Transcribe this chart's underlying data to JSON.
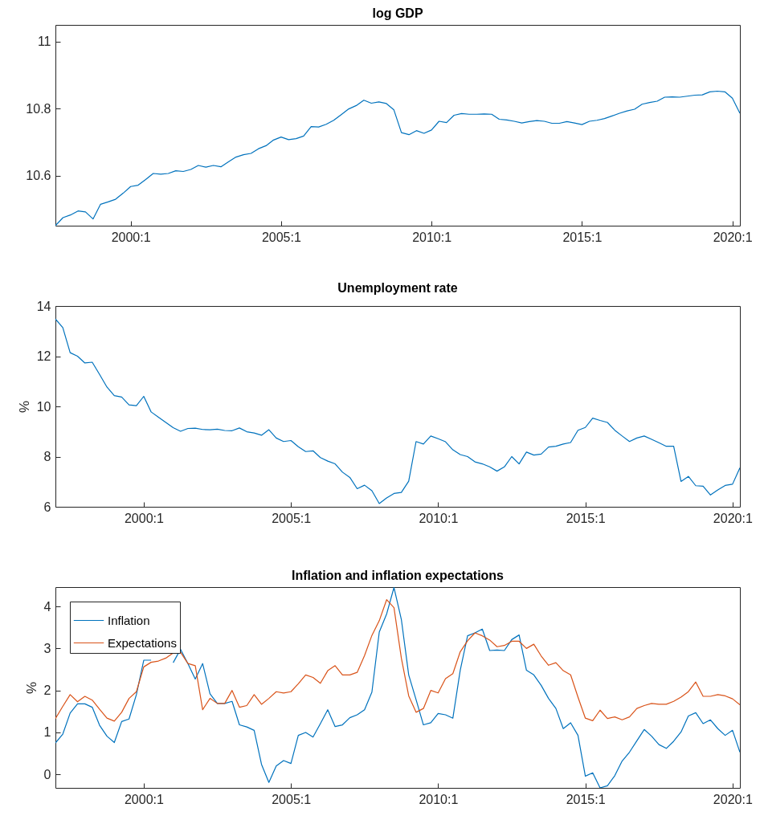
{
  "chart_data": [
    {
      "type": "line",
      "title": "log GDP",
      "ylim": [
        10.45,
        11.05
      ],
      "yticks": [
        10.6,
        10.8,
        11
      ],
      "categories": [
        null,
        null,
        null,
        null,
        null,
        null,
        null,
        null,
        null,
        null,
        "2000:1",
        null,
        null,
        null,
        null,
        null,
        null,
        null,
        null,
        null,
        null,
        null,
        null,
        null,
        null,
        null,
        null,
        null,
        null,
        null,
        "2005:1",
        null,
        null,
        null,
        null,
        null,
        null,
        null,
        null,
        null,
        null,
        null,
        null,
        null,
        null,
        null,
        null,
        null,
        null,
        null,
        "2010:1",
        null,
        null,
        null,
        null,
        null,
        null,
        null,
        null,
        null,
        null,
        null,
        null,
        null,
        null,
        null,
        null,
        null,
        null,
        null,
        "2015:1",
        null,
        null,
        null,
        null,
        null,
        null,
        null,
        null,
        null,
        null,
        null,
        null,
        null,
        null,
        null,
        null,
        null,
        null,
        null,
        "2020:1",
        null
      ],
      "series": [
        {
          "color": "#0072bd",
          "values": [
            10.45,
            10.474,
            10.482,
            10.494,
            10.491,
            10.47,
            10.514,
            10.521,
            10.529,
            10.547,
            10.567,
            10.571,
            10.588,
            10.606,
            10.604,
            10.606,
            10.614,
            10.612,
            10.618,
            10.63,
            10.625,
            10.63,
            10.626,
            10.641,
            10.655,
            10.662,
            10.666,
            10.68,
            10.689,
            10.706,
            10.715,
            10.707,
            10.71,
            10.718,
            10.746,
            10.745,
            10.753,
            10.765,
            10.782,
            10.799,
            10.809,
            10.825,
            10.816,
            10.82,
            10.815,
            10.796,
            10.728,
            10.722,
            10.734,
            10.726,
            10.736,
            10.762,
            10.758,
            10.78,
            10.785,
            10.783,
            10.783,
            10.784,
            10.783,
            10.768,
            10.766,
            10.762,
            10.757,
            10.761,
            10.764,
            10.762,
            10.756,
            10.756,
            10.761,
            10.757,
            10.752,
            10.762,
            10.765,
            10.77,
            10.778,
            10.786,
            10.793,
            10.798,
            10.813,
            10.818,
            10.822,
            10.834,
            10.835,
            10.834,
            10.837,
            10.84,
            10.841,
            10.85,
            10.852,
            10.85,
            10.831,
            10.786
          ]
        }
      ]
    },
    {
      "type": "line",
      "title": "Unemployment rate",
      "ylabel": "%",
      "ylim": [
        6,
        14
      ],
      "yticks": [
        6,
        8,
        10,
        12,
        14
      ],
      "categories": [
        null,
        null,
        null,
        null,
        null,
        null,
        null,
        null,
        null,
        null,
        null,
        null,
        "2000:1",
        null,
        null,
        null,
        null,
        null,
        null,
        null,
        null,
        null,
        null,
        null,
        null,
        null,
        null,
        null,
        null,
        null,
        null,
        null,
        "2005:1",
        null,
        null,
        null,
        null,
        null,
        null,
        null,
        null,
        null,
        null,
        null,
        null,
        null,
        null,
        null,
        null,
        null,
        null,
        null,
        "2010:1",
        null,
        null,
        null,
        null,
        null,
        null,
        null,
        null,
        null,
        null,
        null,
        null,
        null,
        null,
        null,
        null,
        null,
        null,
        null,
        "2015:1",
        null,
        null,
        null,
        null,
        null,
        null,
        null,
        null,
        null,
        null,
        null,
        null,
        null,
        null,
        null,
        null,
        null,
        null,
        null,
        "2020:1",
        null
      ],
      "series": [
        {
          "color": "#0072bd",
          "values": [
            13.48,
            13.14,
            12.14,
            12.0,
            11.73,
            11.76,
            11.27,
            10.77,
            10.43,
            10.37,
            10.06,
            10.03,
            10.4,
            9.78,
            9.57,
            9.36,
            9.15,
            9.01,
            9.12,
            9.13,
            9.08,
            9.07,
            9.09,
            9.04,
            9.03,
            9.14,
            8.99,
            8.94,
            8.85,
            9.07,
            8.74,
            8.6,
            8.64,
            8.39,
            8.2,
            8.23,
            7.96,
            7.82,
            7.71,
            7.38,
            7.17,
            6.72,
            6.86,
            6.64,
            6.13,
            6.35,
            6.53,
            6.57,
            7.02,
            8.6,
            8.5,
            8.82,
            8.71,
            8.59,
            8.27,
            8.08,
            8.0,
            7.79,
            7.71,
            7.59,
            7.42,
            7.59,
            8.0,
            7.71,
            8.18,
            8.06,
            8.1,
            8.38,
            8.41,
            8.5,
            8.56,
            9.05,
            9.16,
            9.53,
            9.44,
            9.36,
            9.05,
            8.82,
            8.6,
            8.74,
            8.82,
            8.69,
            8.55,
            8.41,
            8.41,
            7.01,
            7.21,
            6.84,
            6.82,
            6.47,
            6.67,
            6.85,
            6.9,
            7.55
          ]
        }
      ]
    },
    {
      "type": "line",
      "title": "Inflation and inflation expectations",
      "ylabel": "%",
      "legend": "top left",
      "ylim": [
        -0.32,
        4.46
      ],
      "yticks": [
        0,
        1,
        2,
        3,
        4
      ],
      "categories": [
        null,
        null,
        null,
        null,
        null,
        null,
        null,
        null,
        null,
        null,
        null,
        null,
        "2000:1",
        null,
        null,
        null,
        null,
        null,
        null,
        null,
        null,
        null,
        null,
        null,
        null,
        null,
        null,
        null,
        null,
        null,
        null,
        null,
        "2005:1",
        null,
        null,
        null,
        null,
        null,
        null,
        null,
        null,
        null,
        null,
        null,
        null,
        null,
        null,
        null,
        null,
        null,
        null,
        null,
        "2010:1",
        null,
        null,
        null,
        null,
        null,
        null,
        null,
        null,
        null,
        null,
        null,
        null,
        null,
        null,
        null,
        null,
        null,
        null,
        null,
        "2015:1",
        null,
        null,
        null,
        null,
        null,
        null,
        null,
        null,
        null,
        null,
        null,
        null,
        null,
        null,
        null,
        null,
        null,
        null,
        null,
        "2020:1",
        null
      ],
      "series": [
        {
          "name": "Inflation",
          "color": "#0072bd",
          "values": [
            0.75,
            0.96,
            1.46,
            1.68,
            1.68,
            1.6,
            1.17,
            0.91,
            0.76,
            1.26,
            1.32,
            1.9,
            2.72,
            2.72,
            null,
            null,
            2.66,
            2.98,
            2.64,
            2.27,
            2.64,
            1.92,
            1.69,
            1.69,
            1.74,
            1.18,
            1.13,
            1.05,
            0.24,
            -0.19,
            0.2,
            0.33,
            0.26,
            0.93,
            1.0,
            0.89,
            1.21,
            1.54,
            1.14,
            1.18,
            1.35,
            1.42,
            1.54,
            1.96,
            3.39,
            3.82,
            4.45,
            3.69,
            2.37,
            1.78,
            1.18,
            1.23,
            1.45,
            1.42,
            1.34,
            2.48,
            3.3,
            3.37,
            3.46,
            2.95,
            2.96,
            2.95,
            3.21,
            3.32,
            2.48,
            2.37,
            2.12,
            1.81,
            1.57,
            1.09,
            1.23,
            0.93,
            -0.04,
            0.04,
            -0.32,
            -0.27,
            -0.03,
            0.32,
            0.53,
            0.8,
            1.07,
            0.91,
            0.71,
            0.62,
            0.79,
            1.01,
            1.39,
            1.47,
            1.21,
            1.3,
            1.09,
            0.93,
            1.05,
            0.53
          ]
        },
        {
          "name": "Expectations",
          "color": "#d95319",
          "values": [
            1.33,
            1.62,
            1.9,
            1.73,
            1.86,
            1.77,
            1.55,
            1.34,
            1.27,
            1.48,
            1.81,
            1.97,
            2.56,
            2.67,
            2.7,
            2.77,
            2.89,
            2.91,
            2.64,
            2.59,
            1.54,
            1.81,
            1.69,
            1.69,
            2.0,
            1.6,
            1.64,
            1.9,
            1.67,
            1.81,
            1.97,
            1.94,
            1.97,
            2.16,
            2.37,
            2.31,
            2.17,
            2.47,
            2.59,
            2.37,
            2.37,
            2.43,
            2.83,
            3.31,
            3.66,
            4.16,
            3.97,
            2.77,
            1.87,
            1.48,
            1.57,
            2.0,
            1.94,
            2.28,
            2.4,
            2.92,
            3.18,
            3.37,
            3.3,
            3.2,
            3.04,
            3.07,
            3.17,
            3.17,
            3.0,
            3.1,
            2.82,
            2.6,
            2.66,
            2.47,
            2.37,
            1.84,
            1.34,
            1.28,
            1.53,
            1.33,
            1.37,
            1.3,
            1.37,
            1.57,
            1.64,
            1.69,
            1.67,
            1.67,
            1.74,
            1.84,
            1.97,
            2.2,
            1.86,
            1.86,
            1.9,
            1.87,
            1.8,
            1.66
          ]
        }
      ]
    }
  ]
}
